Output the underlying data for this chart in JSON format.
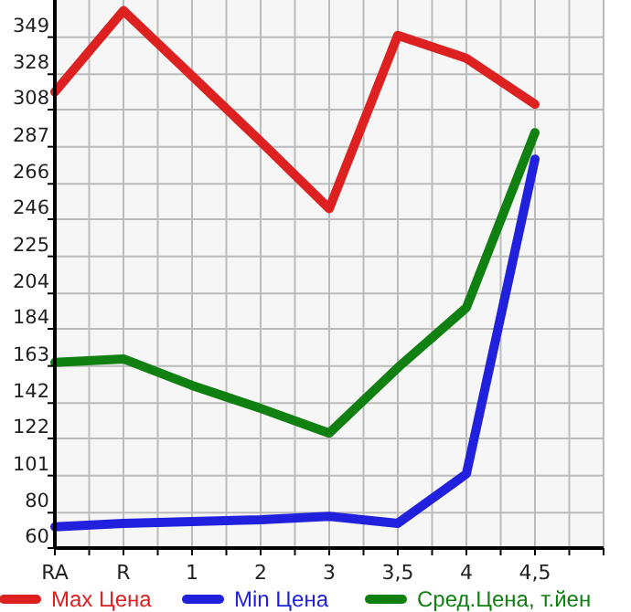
{
  "chart_data": {
    "type": "line",
    "categories": [
      "RA",
      "R",
      "1",
      "2",
      "3",
      "3,5",
      "4",
      "4,5"
    ],
    "series": [
      {
        "name": "Max Цена",
        "color": "#dd2020",
        "values": [
          318,
          364,
          327,
          290,
          252,
          350,
          337,
          311
        ]
      },
      {
        "name": "Min Цена",
        "color": "#2020dd",
        "values": [
          72,
          74,
          75,
          76,
          78,
          74,
          102,
          280
        ]
      },
      {
        "name": "Сред.Цена, т.йен",
        "color": "#108010",
        "values": [
          165,
          167,
          152,
          139,
          125,
          162,
          196,
          295
        ]
      }
    ],
    "ylim": [
      60,
      370
    ],
    "yticks": [
      60,
      80,
      101,
      122,
      142,
      163,
      184,
      204,
      225,
      246,
      266,
      287,
      308,
      328,
      349
    ],
    "grid": true,
    "legend": "bottom",
    "marker": "none",
    "line_style": "solid"
  }
}
